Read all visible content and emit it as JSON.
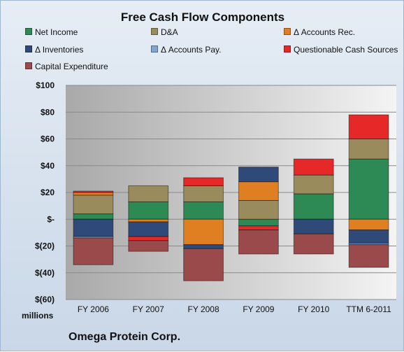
{
  "chart_data": {
    "type": "bar",
    "stacked": true,
    "title": "Free Cash Flow Components",
    "company": "Omega Protein Corp.",
    "units_label": "millions",
    "categories": [
      "FY 2006",
      "FY 2007",
      "FY 2008",
      "FY 2009",
      "FY 2010",
      "TTM 6-2011"
    ],
    "ylim": [
      -60,
      100
    ],
    "yticks": [
      100,
      80,
      60,
      40,
      20,
      0,
      -20,
      -40,
      -60
    ],
    "ytick_labels": [
      "$100",
      "$80",
      "$60",
      "$40",
      "$20",
      "$-",
      "$(20)",
      "$(40)",
      "$(60)"
    ],
    "grid": true,
    "legend_position": "top",
    "series": [
      {
        "name": "Net Income",
        "color": "#2e8a55",
        "values": [
          4,
          13,
          13,
          -5,
          19,
          45
        ]
      },
      {
        "name": "D&A",
        "color": "#9a8b5c",
        "values": [
          14,
          12,
          12,
          14,
          14,
          15
        ]
      },
      {
        "name": "Δ Accounts Rec.",
        "color": "#e07e22",
        "values": [
          2,
          -2,
          -19,
          14,
          0,
          -8
        ]
      },
      {
        "name": "Δ Inventories",
        "color": "#2f4a78",
        "values": [
          -13,
          -11,
          -3,
          11,
          -11,
          -10
        ]
      },
      {
        "name": "Δ Accounts Pay.",
        "color": "#7ea6d0",
        "values": [
          -1,
          0,
          0,
          0,
          0,
          -1
        ]
      },
      {
        "name": "Questionable Cash Sources",
        "color": "#e52828",
        "values": [
          1,
          -3,
          6,
          -3,
          12,
          18
        ]
      },
      {
        "name": "Capital Expenditure",
        "color": "#9b4a4c",
        "values": [
          -20,
          -8,
          -24,
          -18,
          -15,
          -17
        ]
      }
    ]
  }
}
